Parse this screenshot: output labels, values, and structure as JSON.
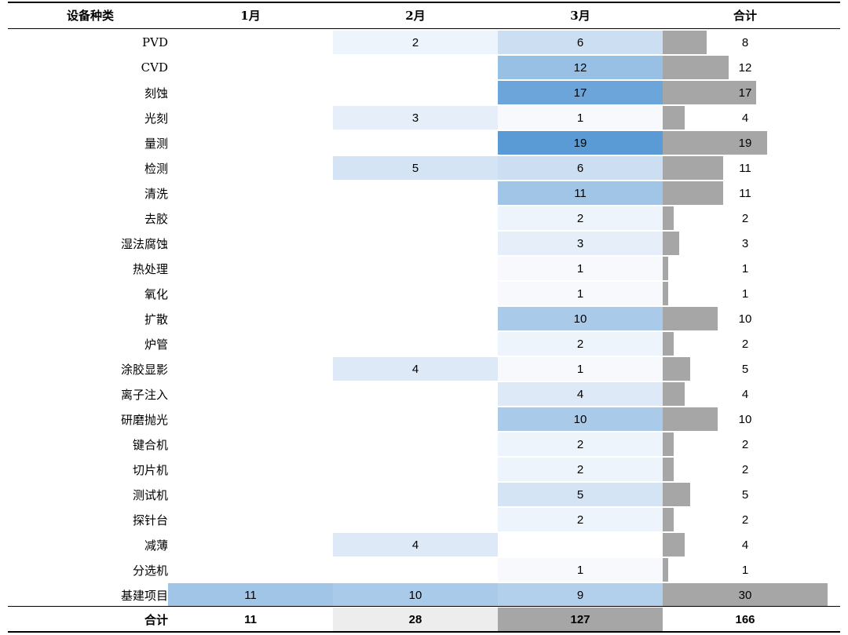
{
  "chart_data": {
    "type": "table",
    "columns": [
      "设备种类",
      "1月",
      "2月",
      "3月",
      "合计"
    ],
    "rows": [
      {
        "label": "PVD",
        "jan": null,
        "feb": 2,
        "mar": 6,
        "total": 8
      },
      {
        "label": "CVD",
        "jan": null,
        "feb": null,
        "mar": 12,
        "total": 12
      },
      {
        "label": "刻蚀",
        "jan": null,
        "feb": null,
        "mar": 17,
        "total": 17
      },
      {
        "label": "光刻",
        "jan": null,
        "feb": 3,
        "mar": 1,
        "total": 4
      },
      {
        "label": "量测",
        "jan": null,
        "feb": null,
        "mar": 19,
        "total": 19
      },
      {
        "label": "检测",
        "jan": null,
        "feb": 5,
        "mar": 6,
        "total": 11
      },
      {
        "label": "清洗",
        "jan": null,
        "feb": null,
        "mar": 11,
        "total": 11
      },
      {
        "label": "去胶",
        "jan": null,
        "feb": null,
        "mar": 2,
        "total": 2
      },
      {
        "label": "湿法腐蚀",
        "jan": null,
        "feb": null,
        "mar": 3,
        "total": 3
      },
      {
        "label": "热处理",
        "jan": null,
        "feb": null,
        "mar": 1,
        "total": 1
      },
      {
        "label": "氧化",
        "jan": null,
        "feb": null,
        "mar": 1,
        "total": 1
      },
      {
        "label": "扩散",
        "jan": null,
        "feb": null,
        "mar": 10,
        "total": 10
      },
      {
        "label": "炉管",
        "jan": null,
        "feb": null,
        "mar": 2,
        "total": 2
      },
      {
        "label": "涂胶显影",
        "jan": null,
        "feb": 4,
        "mar": 1,
        "total": 5
      },
      {
        "label": "离子注入",
        "jan": null,
        "feb": null,
        "mar": 4,
        "total": 4
      },
      {
        "label": "研磨抛光",
        "jan": null,
        "feb": null,
        "mar": 10,
        "total": 10
      },
      {
        "label": "键合机",
        "jan": null,
        "feb": null,
        "mar": 2,
        "total": 2
      },
      {
        "label": "切片机",
        "jan": null,
        "feb": null,
        "mar": 2,
        "total": 2
      },
      {
        "label": "测试机",
        "jan": null,
        "feb": null,
        "mar": 5,
        "total": 5
      },
      {
        "label": "探针台",
        "jan": null,
        "feb": null,
        "mar": 2,
        "total": 2
      },
      {
        "label": "减薄",
        "jan": null,
        "feb": 4,
        "mar": null,
        "total": 4
      },
      {
        "label": "分选机",
        "jan": null,
        "feb": null,
        "mar": 1,
        "total": 1
      },
      {
        "label": "基建项目",
        "jan": 11,
        "feb": 10,
        "mar": 9,
        "total": 30
      }
    ],
    "sum_row": {
      "label": "合计",
      "jan": 11,
      "feb": 28,
      "mar": 127,
      "total": 166
    },
    "total_bar_max": 30
  },
  "colors": {
    "heat_low": "#f7f9fd",
    "heat_high": "#5b9bd5",
    "total_bar": "#a6a6a6",
    "sum_feb_bg": "#ededed",
    "sum_mar_bg": "#a6a6a6"
  }
}
